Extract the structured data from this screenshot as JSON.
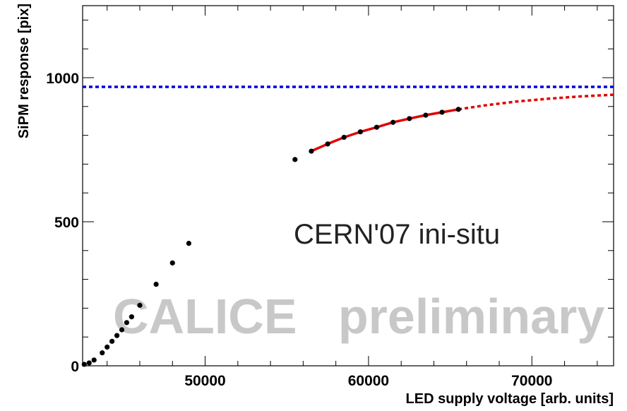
{
  "chart_data": {
    "type": "scatter",
    "xlabel": "LED supply voltage [arb. units]",
    "ylabel": "SiPM response [pix]",
    "xlim": [
      42500,
      75000
    ],
    "ylim": [
      0,
      1250
    ],
    "x_ticks": [
      50000,
      60000,
      70000
    ],
    "y_ticks": [
      0,
      500,
      1000
    ],
    "annotation": "CERN'07 ini-situ",
    "watermark": "CALICE   preliminary",
    "grid": false,
    "series": [
      {
        "type": "scatter",
        "color": "#000000",
        "points": [
          [
            42600,
            5
          ],
          [
            42900,
            10
          ],
          [
            43200,
            20
          ],
          [
            43700,
            45
          ],
          [
            44000,
            65
          ],
          [
            44300,
            85
          ],
          [
            44600,
            105
          ],
          [
            44900,
            125
          ],
          [
            45200,
            150
          ],
          [
            45500,
            170
          ],
          [
            46000,
            210
          ],
          [
            47000,
            283
          ],
          [
            48000,
            357
          ],
          [
            49000,
            425
          ],
          [
            55500,
            716
          ],
          [
            56500,
            745
          ],
          [
            57500,
            770
          ],
          [
            58500,
            793
          ],
          [
            59500,
            812
          ],
          [
            60500,
            828
          ],
          [
            61500,
            845
          ],
          [
            62500,
            858
          ],
          [
            63500,
            870
          ],
          [
            64500,
            880
          ],
          [
            65500,
            890
          ]
        ]
      },
      {
        "type": "line",
        "style": "fit",
        "color": "#e00000",
        "fit_range": [
          56500,
          65500
        ],
        "extrapolate_to": 75000,
        "points": [
          [
            56500,
            745
          ],
          [
            57500,
            770
          ],
          [
            58500,
            793
          ],
          [
            59500,
            812
          ],
          [
            60500,
            828
          ],
          [
            61500,
            845
          ],
          [
            62500,
            858
          ],
          [
            63500,
            870
          ],
          [
            64500,
            880
          ],
          [
            65500,
            890
          ],
          [
            67000,
            903
          ],
          [
            69000,
            917
          ],
          [
            71000,
            927
          ],
          [
            73000,
            935
          ],
          [
            75000,
            941
          ]
        ]
      },
      {
        "type": "hline",
        "color": "#0000e0",
        "y": 968
      }
    ]
  }
}
